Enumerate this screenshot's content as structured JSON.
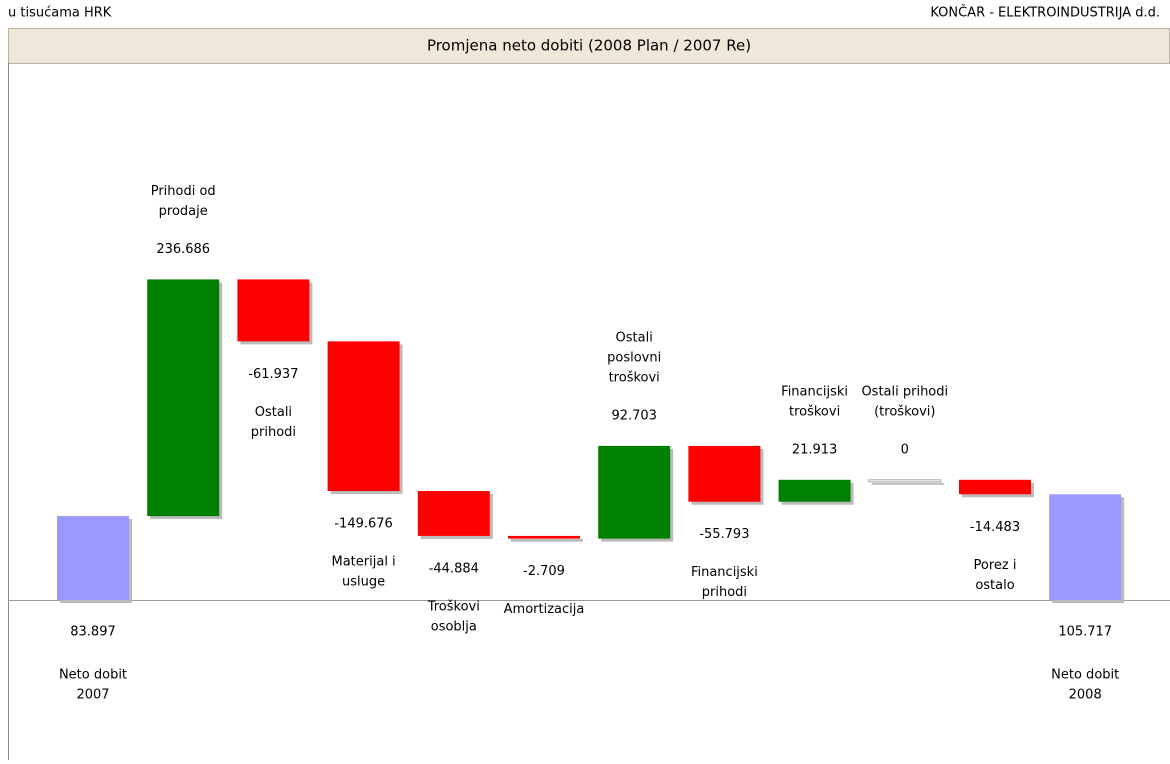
{
  "header": {
    "left": "u tisućama HRK",
    "right": "KONČAR - ELEKTROINDUSTRIJA d.d."
  },
  "chart_data": {
    "type": "waterfall",
    "title": "Promjena neto dobiti (2008 Plan / 2007 Re)",
    "categories": [
      [
        "Neto dobit",
        "2007"
      ],
      [
        "Prihodi od",
        "prodaje"
      ],
      [
        "Ostali",
        "prihodi"
      ],
      [
        "Materijal i",
        "usluge"
      ],
      [
        "Troškovi",
        "osoblja"
      ],
      [
        "Amortizacija"
      ],
      [
        "Ostali",
        "poslovni",
        "troškovi"
      ],
      [
        "Financijski",
        "prihodi"
      ],
      [
        "Financijski",
        "troškovi"
      ],
      [
        "Ostali prihodi",
        "(troškovi)"
      ],
      [
        "Porez i",
        "ostalo"
      ],
      [
        "Neto dobit",
        "2008"
      ]
    ],
    "values": [
      83.897,
      236.686,
      -61.937,
      -149.676,
      -44.884,
      -2.709,
      92.703,
      -55.793,
      21.913,
      0,
      -14.483,
      105.717
    ],
    "totals": [
      true,
      false,
      false,
      false,
      false,
      false,
      false,
      false,
      false,
      false,
      false,
      true
    ],
    "colors": {
      "total": "#9999ff",
      "increase": "#008000",
      "decrease": "#ff0000",
      "zero": "#c8c8c8"
    }
  }
}
